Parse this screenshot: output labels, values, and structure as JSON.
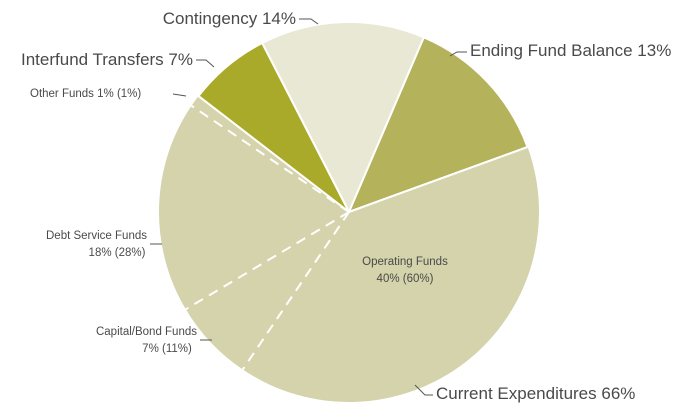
{
  "chart_data": {
    "type": "pie",
    "categories": [
      "Contingency",
      "Ending Fund Balance",
      "Current Expenditures",
      "Interfund Transfers"
    ],
    "values": [
      14,
      13,
      66,
      7
    ],
    "value_labels": [
      "14%",
      "13%",
      "66%",
      "7%"
    ],
    "colors": [
      "#e9e8d4",
      "#b4b25b",
      "#d4d3ab",
      "#aaaa2a"
    ],
    "breakdown": {
      "categories": [
        "Operating Funds",
        "Capital/Bond Funds",
        "Debt Service Funds",
        "Other Funds"
      ],
      "values": [
        40,
        7,
        18,
        1
      ],
      "value_labels": [
        "40% (60%)",
        "7% (11%)",
        "18% (28%)",
        "1% (1%)"
      ]
    }
  }
}
